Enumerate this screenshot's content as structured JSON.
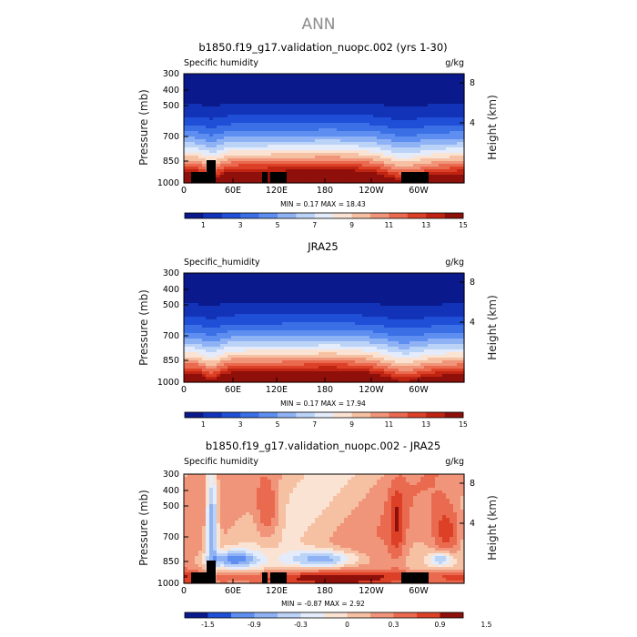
{
  "page_title": "ANN",
  "colors": {
    "abs_scale": [
      "#0a1a8c",
      "#1233b8",
      "#1f4fd6",
      "#3a6fe6",
      "#5d8ef0",
      "#8fb2f5",
      "#bcd3f8",
      "#e4ecfb",
      "#fbe3d4",
      "#f6c0a3",
      "#f1957a",
      "#ea6a4f",
      "#dc4128",
      "#bf2412",
      "#8f0f0a"
    ],
    "diff_scale": [
      "#0a1a8c",
      "#1f4fd6",
      "#5d8ef0",
      "#8fb2f5",
      "#bcd3f8",
      "#e4ecfb",
      "#fbe3d4",
      "#f6c0a3",
      "#f1957a",
      "#ea6a4f",
      "#dc4128",
      "#8f0f0a"
    ],
    "topography": "#000000"
  },
  "chart_data": [
    {
      "type": "heatmap",
      "title": "b1850.f19_g17.validation_nuopc.002 (yrs 1-30)",
      "left_label": "Specific humidity",
      "right_label": "g/kg",
      "ylabel": "Pressure (mb)",
      "y2label": "Height (km)",
      "y_ticks": [
        "300",
        "400",
        "500",
        "700",
        "850",
        "1000"
      ],
      "y2_ticks": [
        "8",
        "4"
      ],
      "x_ticks": [
        "0",
        "60E",
        "120E",
        "180",
        "120W",
        "60W"
      ],
      "stats": "MIN =    0.17   MAX =   18.43",
      "colorbar_labels": [
        "1",
        "3",
        "5",
        "7",
        "9",
        "11",
        "13",
        "15"
      ],
      "value_range": [
        0.17,
        18.43
      ],
      "topography": true
    },
    {
      "type": "heatmap",
      "title": "JRA25",
      "left_label": "Specific_humidity",
      "right_label": "g/kg",
      "ylabel": "Pressure (mb)",
      "y2label": "Height (km)",
      "y_ticks": [
        "300",
        "400",
        "500",
        "700",
        "850",
        "1000"
      ],
      "y2_ticks": [
        "8",
        "4"
      ],
      "x_ticks": [
        "0",
        "60E",
        "120E",
        "180",
        "120W",
        "60W"
      ],
      "stats": "MIN =    0.17   MAX =   17.94",
      "colorbar_labels": [
        "1",
        "3",
        "5",
        "7",
        "9",
        "11",
        "13",
        "15"
      ],
      "value_range": [
        0.17,
        17.94
      ],
      "topography": false
    },
    {
      "type": "heatmap",
      "title": "b1850.f19_g17.validation_nuopc.002 - JRA25",
      "left_label": "Specific humidity",
      "right_label": "g/kg",
      "ylabel": "Pressure (mb)",
      "y2label": "Height (km)",
      "y_ticks": [
        "300",
        "400",
        "500",
        "700",
        "850",
        "1000"
      ],
      "y2_ticks": [
        "8",
        "4"
      ],
      "x_ticks": [
        "0",
        "60E",
        "120E",
        "180",
        "120W",
        "60W"
      ],
      "stats": "MIN =   -0.87   MAX =    2.92",
      "colorbar_labels": [
        "-1.5",
        "-0.9",
        "-0.3",
        "0",
        "0.3",
        "0.9",
        "1.5"
      ],
      "value_range": [
        -0.87,
        2.92
      ],
      "topography": true
    }
  ]
}
